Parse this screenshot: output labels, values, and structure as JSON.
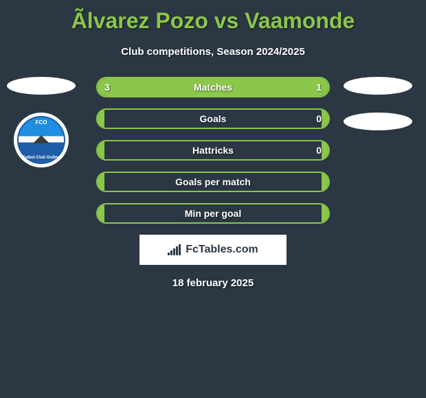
{
  "title": "Ãlvarez Pozo vs Vaamonde",
  "subtitle": "Club competitions, Season 2024/2025",
  "date": "18 february 2025",
  "watermark": "FcTables.com",
  "club_badge": {
    "top_text": "FCO",
    "bottom_text": "Futbol Club Ordino"
  },
  "colors": {
    "background": "#2b3743",
    "accent": "#8bc74a",
    "text": "#ffffff",
    "watermark_bg": "#ffffff",
    "watermark_text": "#2b3743"
  },
  "stats": [
    {
      "label": "Matches",
      "left_value": "3",
      "right_value": "1",
      "left_fill_pct": 75,
      "right_fill_pct": 25
    },
    {
      "label": "Goals",
      "left_value": "",
      "right_value": "0",
      "left_fill_pct": 3,
      "right_fill_pct": 3
    },
    {
      "label": "Hattricks",
      "left_value": "",
      "right_value": "0",
      "left_fill_pct": 3,
      "right_fill_pct": 3
    },
    {
      "label": "Goals per match",
      "left_value": "",
      "right_value": "",
      "left_fill_pct": 3,
      "right_fill_pct": 3
    },
    {
      "label": "Min per goal",
      "left_value": "",
      "right_value": "",
      "left_fill_pct": 3,
      "right_fill_pct": 3
    }
  ]
}
